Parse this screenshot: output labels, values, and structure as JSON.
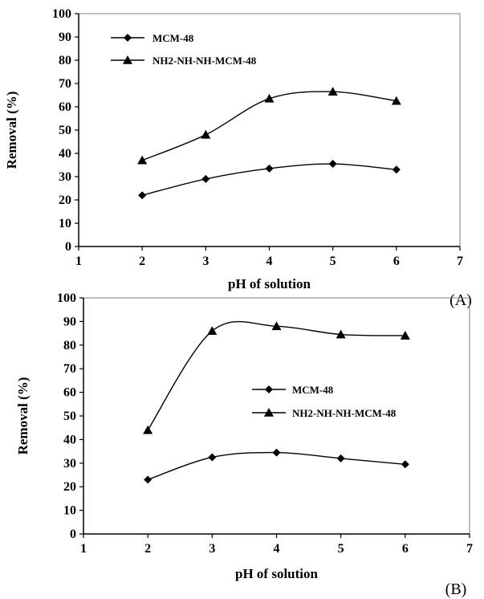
{
  "chart_data": [
    {
      "type": "line",
      "panel_label": "(A)",
      "xlabel": "pH of solution",
      "ylabel": "Removal (%)",
      "xlim": [
        1,
        7
      ],
      "ylim": [
        0,
        100
      ],
      "x_ticks": [
        "1",
        "2",
        "3",
        "4",
        "5",
        "6",
        "7"
      ],
      "y_ticks": [
        "0",
        "10",
        "20",
        "30",
        "40",
        "50",
        "60",
        "70",
        "80",
        "90",
        "100"
      ],
      "x": [
        2,
        3,
        4,
        5,
        6
      ],
      "series": [
        {
          "name": "MCM-48",
          "marker": "diamond",
          "values": [
            22,
            29,
            33.5,
            35.5,
            33
          ]
        },
        {
          "name": "NH2-NH-NH-MCM-48",
          "marker": "triangle",
          "values": [
            37,
            48,
            63.5,
            66.5,
            62.5
          ]
        }
      ],
      "smooth": true,
      "grid": false,
      "legend_position": "top-left"
    },
    {
      "type": "line",
      "panel_label": "(B)",
      "xlabel": "pH of solution",
      "ylabel": "Removal (%)",
      "xlim": [
        1,
        7
      ],
      "ylim": [
        0,
        100
      ],
      "x_ticks": [
        "1",
        "2",
        "3",
        "4",
        "5",
        "6",
        "7"
      ],
      "y_ticks": [
        "0",
        "10",
        "20",
        "30",
        "40",
        "50",
        "60",
        "70",
        "80",
        "90",
        "100"
      ],
      "x": [
        2,
        3,
        4,
        5,
        6
      ],
      "series": [
        {
          "name": "MCM-48",
          "marker": "diamond",
          "values": [
            23,
            32.5,
            34.5,
            32,
            29.5
          ]
        },
        {
          "name": "NH2-NH-NH-MCM-48",
          "marker": "triangle",
          "values": [
            44,
            86,
            88,
            84.5,
            84
          ]
        }
      ],
      "smooth": true,
      "grid": false,
      "legend_position": "center-right"
    }
  ]
}
